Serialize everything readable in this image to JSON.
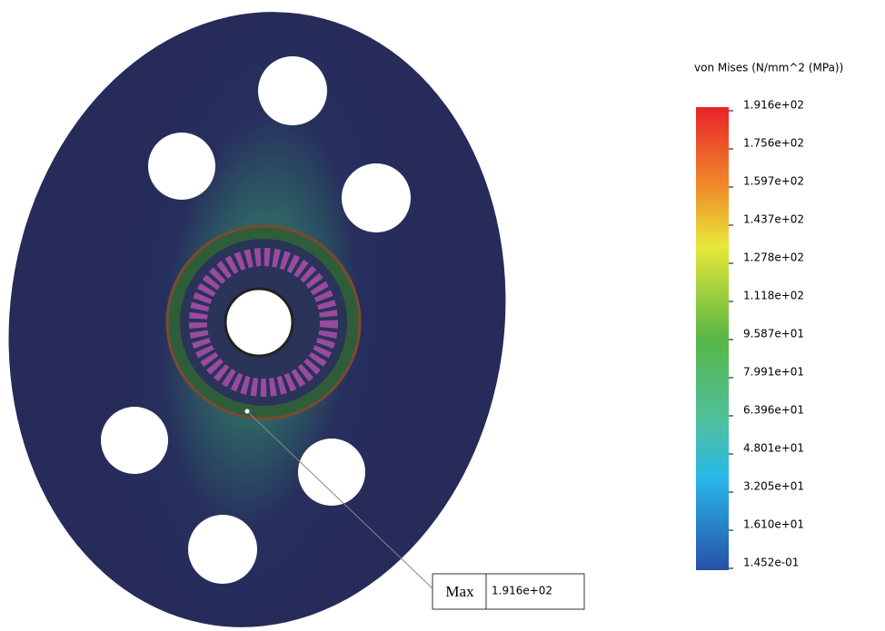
{
  "legend": {
    "title": "von Mises (N/mm^2 (MPa))",
    "labels": [
      "1.916e+02",
      "1.756e+02",
      "1.597e+02",
      "1.437e+02",
      "1.278e+02",
      "1.118e+02",
      "9.587e+01",
      "7.991e+01",
      "6.396e+01",
      "4.801e+01",
      "3.205e+01",
      "1.610e+01",
      "1.452e-01"
    ]
  },
  "probe": {
    "label": "Max",
    "value": "1.916e+02"
  }
}
